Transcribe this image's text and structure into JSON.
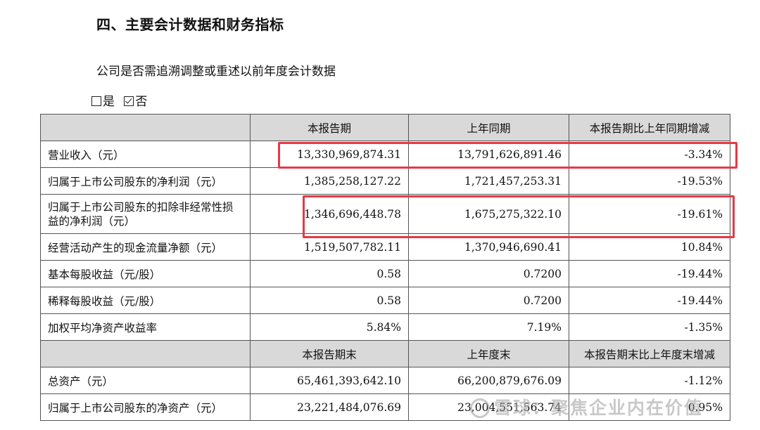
{
  "heading": "四、主要会计数据和财务指标",
  "question": "公司是否需追溯调整或重述以前年度会计数据",
  "answer": {
    "options": [
      {
        "label": "是",
        "checked": false
      },
      {
        "label": "否",
        "checked": true
      }
    ]
  },
  "table": {
    "section1": {
      "headers": [
        "",
        "本报告期",
        "上年同期",
        "本报告期比上年同期增减"
      ],
      "rows": [
        {
          "label": "营业收入（元）",
          "current": "13,330,969,874.31",
          "prior": "13,791,626,891.46",
          "change": "-3.34%"
        },
        {
          "label": "归属于上市公司股东的净利润（元）",
          "current": "1,385,258,127.22",
          "prior": "1,721,457,253.31",
          "change": "-19.53%"
        },
        {
          "label": "归属于上市公司股东的扣除非经常性损益的净利润（元）",
          "current": "1,346,696,448.78",
          "prior": "1,675,275,322.10",
          "change": "-19.61%"
        },
        {
          "label": "经营活动产生的现金流量净额（元）",
          "current": "1,519,507,782.11",
          "prior": "1,370,946,690.41",
          "change": "10.84%"
        },
        {
          "label": "基本每股收益（元/股）",
          "current": "0.58",
          "prior": "0.7200",
          "change": "-19.44%"
        },
        {
          "label": "稀释每股收益（元/股）",
          "current": "0.58",
          "prior": "0.7200",
          "change": "-19.44%"
        },
        {
          "label": "加权平均净资产收益率",
          "current": "5.84%",
          "prior": "7.19%",
          "change": "-1.35%"
        }
      ]
    },
    "section2": {
      "headers": [
        "",
        "本报告期末",
        "上年度末",
        "本报告期末比上年度末增减"
      ],
      "rows": [
        {
          "label": "总资产（元）",
          "current": "65,461,393,642.10",
          "prior": "66,200,879,676.09",
          "change": "-1.12%"
        },
        {
          "label": "归属于上市公司股东的净资产（元）",
          "current": "23,221,484,076.69",
          "prior": "23,004,551,563.74",
          "change": "0.95%"
        }
      ]
    }
  },
  "highlight_color": "#e53945",
  "watermark": "雪球：聚焦企业内在价值"
}
